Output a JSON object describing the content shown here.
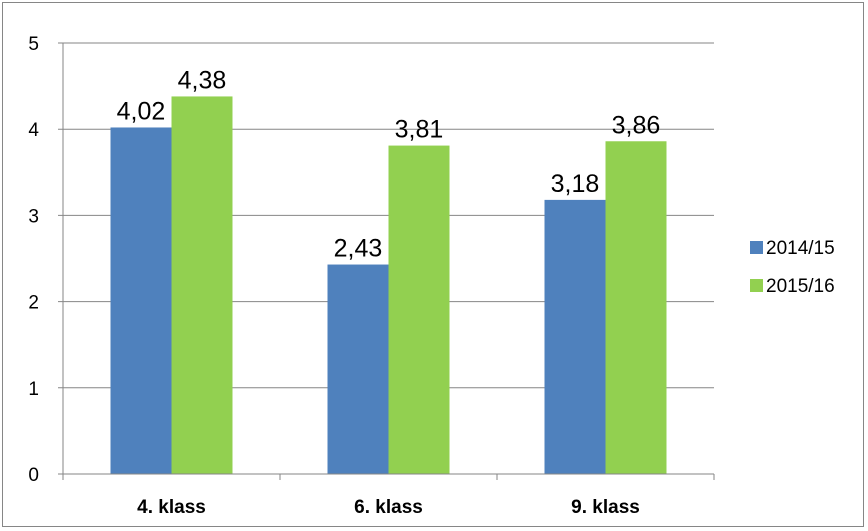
{
  "chart_data": {
    "type": "bar",
    "categories": [
      "4. klass",
      "6. klass",
      "9. klass"
    ],
    "series": [
      {
        "name": "2014/15",
        "values": [
          4.02,
          2.43,
          3.18
        ],
        "labels": [
          "4,02",
          "2,43",
          "3,18"
        ],
        "color": "#4F81BD"
      },
      {
        "name": "2015/16",
        "values": [
          4.38,
          3.81,
          3.86
        ],
        "labels": [
          "4,38",
          "3,81",
          "3,86"
        ],
        "color": "#92D050"
      }
    ],
    "ylim": [
      0,
      5
    ],
    "yticks": [
      "0",
      "1",
      "2",
      "3",
      "4",
      "5"
    ],
    "grid": true,
    "legend": "right"
  }
}
